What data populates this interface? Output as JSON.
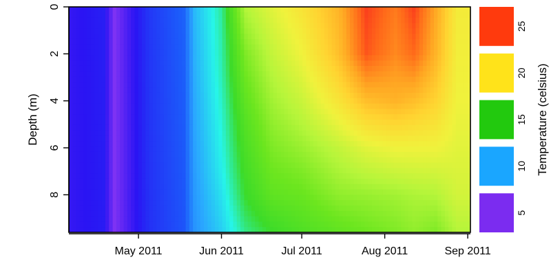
{
  "chart_data": {
    "type": "heatmap",
    "style": "filled-contour",
    "xlabel": "",
    "ylabel": "Depth (m)",
    "x_ticks": [
      "May 2011",
      "Jun 2011",
      "Jul 2011",
      "Aug 2011",
      "Sep 2011"
    ],
    "x_range": [
      "2011-04-05",
      "2011-09-02"
    ],
    "y_ticks": [
      0,
      2,
      4,
      6,
      8
    ],
    "ylim": [
      9.6,
      0
    ],
    "y_reversed": true,
    "legend": {
      "title": "Temperature (celsius)",
      "placement": "right",
      "ticks": [
        5,
        10,
        15,
        20,
        25
      ],
      "bins": [
        {
          "range": [
            2.5,
            7.5
          ],
          "color": "#7B2CF0"
        },
        {
          "range": [
            7.5,
            12.5
          ],
          "color": "#1AA6FF"
        },
        {
          "range": [
            12.5,
            17.5
          ],
          "color": "#22C90E"
        },
        {
          "range": [
            17.5,
            22.5
          ],
          "color": "#FFE31A"
        },
        {
          "range": [
            22.5,
            27.5
          ],
          "color": "#FF3A0D"
        }
      ]
    },
    "color_scale": [
      {
        "value": 4,
        "color": "#9B3CF3"
      },
      {
        "value": 6,
        "color": "#2A14F3"
      },
      {
        "value": 8,
        "color": "#1C5BFA"
      },
      {
        "value": 10,
        "color": "#2AA6FF"
      },
      {
        "value": 12,
        "color": "#27F5E8"
      },
      {
        "value": 14,
        "color": "#3CDB29"
      },
      {
        "value": 16,
        "color": "#6CE61F"
      },
      {
        "value": 18,
        "color": "#B5F53A"
      },
      {
        "value": 20,
        "color": "#F0F23C"
      },
      {
        "value": 22,
        "color": "#FFD431"
      },
      {
        "value": 24,
        "color": "#FFA823"
      },
      {
        "value": 26,
        "color": "#FF6A1A"
      },
      {
        "value": 28,
        "color": "#F7141E"
      }
    ],
    "series": [
      {
        "x": "2011-04-05",
        "temperature_by_depth": [
          [
            0,
            5.8
          ],
          [
            9.6,
            5.8
          ]
        ]
      },
      {
        "x": "2011-04-18",
        "temperature_by_depth": [
          [
            0,
            6.3
          ],
          [
            9.6,
            6.2
          ]
        ]
      },
      {
        "x": "2011-04-22",
        "temperature_by_depth": [
          [
            0,
            4.5
          ],
          [
            9.6,
            4.5
          ]
        ]
      },
      {
        "x": "2011-05-05",
        "temperature_by_depth": [
          [
            0,
            7.0
          ],
          [
            9.6,
            6.8
          ]
        ]
      },
      {
        "x": "2011-05-18",
        "temperature_by_depth": [
          [
            0,
            8.2
          ],
          [
            9.6,
            7.8
          ]
        ]
      },
      {
        "x": "2011-05-22",
        "temperature_by_depth": [
          [
            0,
            10.5
          ],
          [
            5,
            10.0
          ],
          [
            9.6,
            9.5
          ]
        ]
      },
      {
        "x": "2011-06-01",
        "temperature_by_depth": [
          [
            0,
            12.8
          ],
          [
            3,
            12.5
          ],
          [
            7,
            11.8
          ],
          [
            9.6,
            11.0
          ]
        ]
      },
      {
        "x": "2011-06-10",
        "temperature_by_depth": [
          [
            0,
            18.0
          ],
          [
            2,
            16.5
          ],
          [
            5,
            15.0
          ],
          [
            8,
            14.0
          ],
          [
            9.6,
            13.0
          ]
        ]
      },
      {
        "x": "2011-06-20",
        "temperature_by_depth": [
          [
            0,
            19.5
          ],
          [
            2,
            18.5
          ],
          [
            5,
            17.0
          ],
          [
            8,
            15.5
          ],
          [
            9.6,
            14.0
          ]
        ]
      },
      {
        "x": "2011-07-01",
        "temperature_by_depth": [
          [
            0,
            21.0
          ],
          [
            2,
            20.0
          ],
          [
            5,
            18.0
          ],
          [
            7,
            16.5
          ],
          [
            9.6,
            14.8
          ]
        ]
      },
      {
        "x": "2011-07-15",
        "temperature_by_depth": [
          [
            0,
            23.5
          ],
          [
            2,
            23.0
          ],
          [
            4,
            21.0
          ],
          [
            6,
            18.5
          ],
          [
            8,
            17.0
          ],
          [
            9.6,
            15.5
          ]
        ]
      },
      {
        "x": "2011-07-25",
        "temperature_by_depth": [
          [
            0,
            27.0
          ],
          [
            2,
            26.5
          ],
          [
            4,
            23.0
          ],
          [
            6,
            19.5
          ],
          [
            8,
            17.2
          ],
          [
            9.6,
            16.0
          ]
        ]
      },
      {
        "x": "2011-08-05",
        "temperature_by_depth": [
          [
            0,
            25.5
          ],
          [
            2,
            25.0
          ],
          [
            4,
            23.5
          ],
          [
            6,
            20.0
          ],
          [
            8,
            17.5
          ],
          [
            9.6,
            16.5
          ]
        ]
      },
      {
        "x": "2011-08-12",
        "temperature_by_depth": [
          [
            0,
            27.0
          ],
          [
            2,
            26.0
          ],
          [
            4,
            23.0
          ],
          [
            6,
            20.0
          ],
          [
            8,
            17.8
          ],
          [
            9.6,
            17.0
          ]
        ]
      },
      {
        "x": "2011-08-20",
        "temperature_by_depth": [
          [
            0,
            24.0
          ],
          [
            2,
            23.5
          ],
          [
            4,
            22.0
          ],
          [
            6,
            20.0
          ],
          [
            8,
            18.0
          ],
          [
            9.6,
            16.5
          ]
        ]
      },
      {
        "x": "2011-08-28",
        "temperature_by_depth": [
          [
            0,
            20.5
          ],
          [
            4,
            20.0
          ],
          [
            8,
            19.0
          ],
          [
            9.6,
            18.0
          ]
        ]
      }
    ]
  }
}
